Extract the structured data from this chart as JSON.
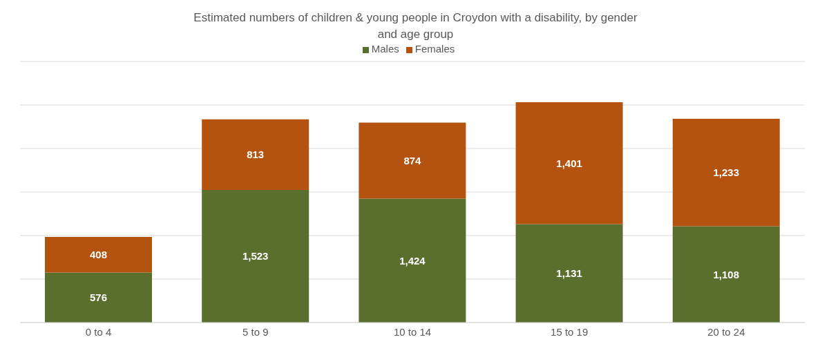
{
  "chart_data": {
    "type": "bar",
    "title": "Estimated numbers of children & young people in Croydon with a disability, by gender and age group",
    "categories": [
      "0 to 4",
      "5 to 9",
      "10 to 14",
      "15 to 19",
      "20 to 24"
    ],
    "series": [
      {
        "name": "Males",
        "color": "#5a6e2e",
        "values": [
          576,
          1523,
          1424,
          1131,
          1108
        ],
        "value_labels": [
          "576",
          "1,523",
          "1,424",
          "1,131",
          "1,108"
        ]
      },
      {
        "name": "Females",
        "color": "#b4530f",
        "values": [
          408,
          813,
          874,
          1401,
          1233
        ],
        "value_labels": [
          "408",
          "813",
          "874",
          "1,401",
          "1,233"
        ]
      }
    ],
    "stacked": true,
    "legend": "top",
    "grid": "y",
    "tick_labels": "x",
    "ylim": [
      0,
      3000
    ]
  }
}
